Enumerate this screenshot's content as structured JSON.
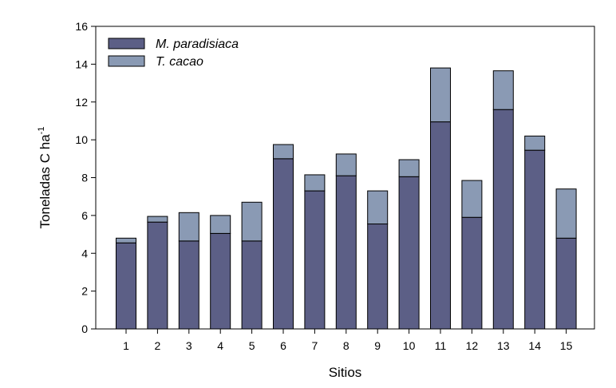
{
  "chart_data": {
    "type": "bar",
    "stacked": true,
    "categories": [
      "1",
      "2",
      "3",
      "4",
      "5",
      "6",
      "7",
      "8",
      "9",
      "10",
      "11",
      "12",
      "13",
      "14",
      "15"
    ],
    "series": [
      {
        "name": "M. paradisiaca",
        "color": "#5c5f86",
        "values": [
          4.55,
          5.65,
          4.65,
          5.05,
          4.65,
          9.0,
          7.3,
          8.1,
          5.55,
          8.05,
          10.95,
          5.9,
          11.6,
          9.45,
          4.8
        ]
      },
      {
        "name": "T. cacao",
        "color": "#8a9ab4",
        "values": [
          0.25,
          0.3,
          1.5,
          0.95,
          2.05,
          0.75,
          0.85,
          1.15,
          1.75,
          0.9,
          2.85,
          1.95,
          2.05,
          0.75,
          2.6
        ]
      }
    ],
    "xlabel": "Sitios",
    "ylabel": "Toneladas C ha",
    "ylabel_superscript": "-1",
    "ylim": [
      0,
      16
    ],
    "yticks": [
      "0",
      "2",
      "4",
      "6",
      "8",
      "10",
      "12",
      "14",
      "16"
    ],
    "grid": false,
    "legend_position": "top-left"
  }
}
